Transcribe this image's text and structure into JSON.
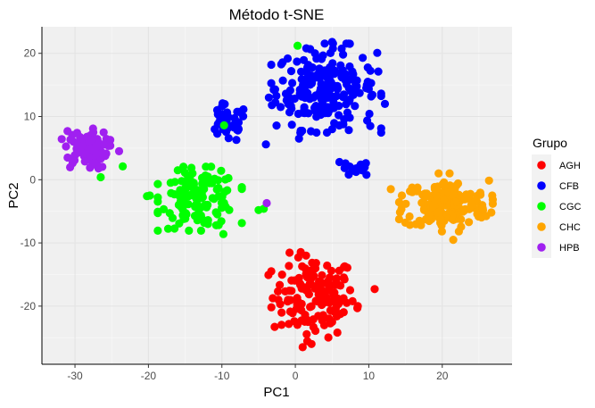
{
  "chart_data": {
    "type": "scatter",
    "title": "Método t-SNE",
    "xlabel": "PC1",
    "ylabel": "PC2",
    "xlim": [
      -34.5,
      29.5
    ],
    "ylim": [
      -29.2,
      24.2
    ],
    "xticks": [
      -30,
      -20,
      -10,
      0,
      10,
      20
    ],
    "yticks": [
      -20,
      -10,
      0,
      10,
      20
    ],
    "xtick_labels": [
      "-30",
      "-20",
      "-10",
      "0",
      "10",
      "20"
    ],
    "ytick_labels": [
      "-20",
      "-10",
      "0",
      "10",
      "20"
    ],
    "grid": true,
    "legend": {
      "title": "Grupo",
      "position": "right"
    },
    "series": [
      {
        "name": "AGH",
        "color": "#ff0000",
        "clusters": [
          {
            "cx": 2.5,
            "cy": -18.5,
            "sx": 2.8,
            "sy": 3.2,
            "n": 140
          }
        ],
        "points": [
          [
            7.0,
            -19.5
          ],
          [
            8.5,
            -20.0
          ],
          [
            10.8,
            -17.3
          ],
          [
            1.0,
            -26.5
          ],
          [
            2.2,
            -26.0
          ],
          [
            5.0,
            -22.5
          ],
          [
            -1.0,
            -19.0
          ]
        ]
      },
      {
        "name": "CFB",
        "color": "#0000ff",
        "clusters": [
          {
            "cx": 4.2,
            "cy": 14.5,
            "sx": 3.4,
            "sy": 3.2,
            "n": 220
          },
          {
            "cx": -9.3,
            "cy": 8.8,
            "sx": 1.4,
            "sy": 1.5,
            "n": 40
          },
          {
            "cx": 8.2,
            "cy": 1.7,
            "sx": 1.0,
            "sy": 0.6,
            "n": 15
          }
        ],
        "points": [
          [
            5.0,
            21.8
          ],
          [
            1.5,
            20.8
          ],
          [
            -3.6,
            13.0
          ],
          [
            -4.0,
            5.6
          ],
          [
            5.0,
            8.0
          ],
          [
            -2.0,
            11.5
          ],
          [
            0.5,
            6.5
          ],
          [
            10.2,
            8.5
          ],
          [
            12.2,
            12.0
          ],
          [
            6.5,
            19.8
          ],
          [
            6.0,
            2.8
          ]
        ]
      },
      {
        "name": "CGC",
        "color": "#00ff00",
        "clusters": [
          {
            "cx": -13.0,
            "cy": -3.0,
            "sx": 2.6,
            "sy": 2.3,
            "n": 130
          }
        ],
        "points": [
          [
            0.3,
            21.2
          ],
          [
            -9.7,
            8.6
          ],
          [
            -23.5,
            2.1
          ],
          [
            -26.5,
            0.4
          ],
          [
            -19.8,
            -2.5
          ],
          [
            -20.2,
            -2.6
          ],
          [
            -5.0,
            -4.8
          ],
          [
            -4.3,
            -4.6
          ],
          [
            -9.8,
            -8.6
          ],
          [
            -16.0,
            1.5
          ],
          [
            -14.0,
            1.0
          ]
        ]
      },
      {
        "name": "CHC",
        "color": "#ffa500",
        "clusters": [
          {
            "cx": 20.5,
            "cy": -4.0,
            "sx": 2.9,
            "sy": 1.9,
            "n": 170
          }
        ],
        "points": [
          [
            13.0,
            -1.5
          ],
          [
            14.5,
            -2.5
          ],
          [
            21.5,
            -9.5
          ],
          [
            25.5,
            -4.5
          ],
          [
            19.5,
            1.0
          ],
          [
            21.0,
            1.0
          ]
        ]
      },
      {
        "name": "HPB",
        "color": "#a020f0",
        "clusters": [
          {
            "cx": -28.5,
            "cy": 4.8,
            "sx": 1.5,
            "sy": 1.5,
            "n": 85
          }
        ],
        "points": [
          [
            -3.9,
            -3.7
          ],
          [
            -24.0,
            4.5
          ],
          [
            -31.0,
            3.5
          ],
          [
            -27.5,
            7.5
          ],
          [
            -26.8,
            1.8
          ]
        ]
      }
    ]
  }
}
